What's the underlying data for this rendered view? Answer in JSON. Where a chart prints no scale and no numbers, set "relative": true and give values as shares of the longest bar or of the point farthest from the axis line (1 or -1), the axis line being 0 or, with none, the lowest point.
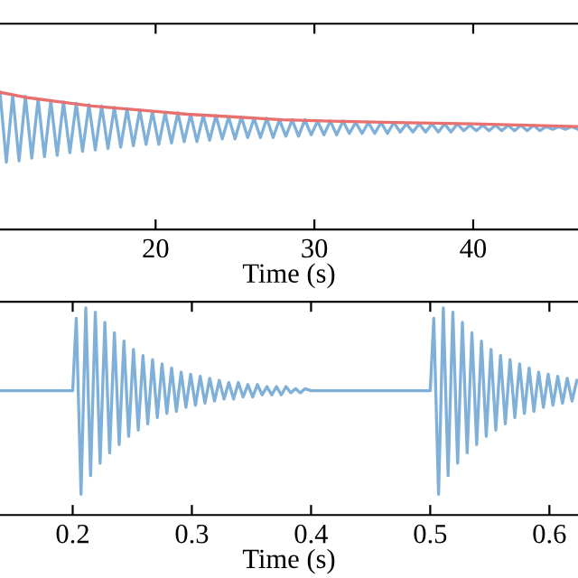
{
  "chart_data": [
    {
      "type": "line",
      "xlabel": "Time (s)",
      "relative": true,
      "tick_labels": "x",
      "grid": false,
      "xlim": [
        10.2,
        46.6
      ],
      "xticks": [
        20,
        30,
        40
      ],
      "series": [
        {
          "color": "#7fb0da",
          "x": [
            10.2,
            10.6,
            11.0,
            11.4,
            11.8,
            12.2,
            12.6,
            13.0,
            13.4,
            13.8,
            14.2,
            14.6,
            15.0,
            15.4,
            15.8,
            16.2,
            16.6,
            17.0,
            17.4,
            17.8,
            18.2,
            18.6,
            19.0,
            19.4,
            19.8,
            20.2,
            20.6,
            21.0,
            21.4,
            21.8,
            22.2,
            22.6,
            23.0,
            23.4,
            23.8,
            24.2,
            24.6,
            25.0,
            25.4,
            25.8,
            26.2,
            26.6,
            27.0,
            27.4,
            27.8,
            28.2,
            28.6,
            29.0,
            29.4,
            29.8,
            30.2,
            30.6,
            31.0,
            31.4,
            31.8,
            32.2,
            32.6,
            33.0,
            33.4,
            33.8,
            34.2,
            34.6,
            35.0,
            35.4,
            35.8,
            36.2,
            36.6,
            37.0,
            37.4,
            37.8,
            38.2,
            38.6,
            39.0,
            39.4,
            39.8,
            40.2,
            40.6,
            41.0,
            41.4,
            41.8,
            42.2,
            42.6,
            43.0,
            43.4,
            43.8,
            44.2,
            44.6,
            45.0,
            45.4,
            45.8,
            46.2,
            46.6
          ],
          "values": [
            1.0,
            0.49,
            0.98,
            0.5,
            0.97,
            0.52,
            0.95,
            0.53,
            0.94,
            0.54,
            0.93,
            0.56,
            0.92,
            0.57,
            0.91,
            0.58,
            0.9,
            0.59,
            0.89,
            0.6,
            0.88,
            0.61,
            0.87,
            0.62,
            0.86,
            0.62,
            0.85,
            0.63,
            0.85,
            0.64,
            0.84,
            0.64,
            0.83,
            0.65,
            0.83,
            0.66,
            0.82,
            0.66,
            0.82,
            0.67,
            0.81,
            0.67,
            0.81,
            0.67,
            0.8,
            0.68,
            0.8,
            0.68,
            0.8,
            0.69,
            0.79,
            0.69,
            0.79,
            0.69,
            0.79,
            0.7,
            0.78,
            0.7,
            0.78,
            0.7,
            0.78,
            0.7,
            0.78,
            0.71,
            0.77,
            0.71,
            0.77,
            0.71,
            0.77,
            0.71,
            0.77,
            0.71,
            0.77,
            0.72,
            0.76,
            0.72,
            0.76,
            0.72,
            0.76,
            0.72,
            0.76,
            0.72,
            0.76,
            0.72,
            0.76,
            0.72,
            0.75,
            0.73,
            0.75,
            0.73,
            0.75,
            0.73
          ]
        },
        {
          "color": "#e8706f",
          "x": [
            10.2,
            12,
            14,
            16,
            18,
            20,
            22,
            25,
            28,
            31,
            35,
            40,
            46.6
          ],
          "values": [
            1.0,
            0.96,
            0.93,
            0.9,
            0.88,
            0.86,
            0.84,
            0.82,
            0.8,
            0.79,
            0.78,
            0.77,
            0.75
          ]
        }
      ]
    },
    {
      "type": "line",
      "xlabel": "Time (s)",
      "relative": true,
      "tick_labels": "x",
      "grid": false,
      "xlim": [
        0.139,
        0.624
      ],
      "xticks": [
        0.2,
        0.3,
        0.4,
        0.5,
        0.6
      ],
      "series": [
        {
          "color": "#7fb0da",
          "x": [
            0.139,
            0.2,
            0.203,
            0.207,
            0.211,
            0.215,
            0.219,
            0.223,
            0.227,
            0.231,
            0.235,
            0.239,
            0.243,
            0.247,
            0.251,
            0.255,
            0.259,
            0.263,
            0.267,
            0.271,
            0.275,
            0.279,
            0.283,
            0.287,
            0.291,
            0.295,
            0.299,
            0.303,
            0.307,
            0.311,
            0.315,
            0.319,
            0.323,
            0.327,
            0.331,
            0.335,
            0.339,
            0.343,
            0.347,
            0.351,
            0.355,
            0.359,
            0.363,
            0.367,
            0.371,
            0.375,
            0.379,
            0.383,
            0.387,
            0.391,
            0.395,
            0.4,
            0.5,
            0.503,
            0.507,
            0.511,
            0.515,
            0.519,
            0.523,
            0.527,
            0.531,
            0.535,
            0.539,
            0.543,
            0.547,
            0.551,
            0.555,
            0.559,
            0.563,
            0.567,
            0.571,
            0.575,
            0.579,
            0.583,
            0.587,
            0.591,
            0.595,
            0.599,
            0.603,
            0.607,
            0.611,
            0.615,
            0.619,
            0.623
          ],
          "values": [
            0.6,
            0.6,
            0.95,
            0.1,
            1.0,
            0.19,
            0.98,
            0.25,
            0.93,
            0.3,
            0.88,
            0.34,
            0.84,
            0.38,
            0.8,
            0.41,
            0.77,
            0.44,
            0.75,
            0.47,
            0.73,
            0.49,
            0.71,
            0.5,
            0.69,
            0.52,
            0.68,
            0.53,
            0.67,
            0.54,
            0.66,
            0.55,
            0.65,
            0.56,
            0.64,
            0.56,
            0.64,
            0.57,
            0.63,
            0.57,
            0.63,
            0.58,
            0.62,
            0.58,
            0.62,
            0.58,
            0.62,
            0.59,
            0.61,
            0.59,
            0.61,
            0.6,
            0.6,
            0.95,
            0.1,
            1.0,
            0.19,
            0.98,
            0.25,
            0.93,
            0.3,
            0.88,
            0.34,
            0.84,
            0.38,
            0.8,
            0.41,
            0.77,
            0.44,
            0.75,
            0.47,
            0.73,
            0.49,
            0.71,
            0.5,
            0.69,
            0.52,
            0.68,
            0.53,
            0.67,
            0.54,
            0.66,
            0.55,
            0.65
          ]
        }
      ]
    }
  ]
}
